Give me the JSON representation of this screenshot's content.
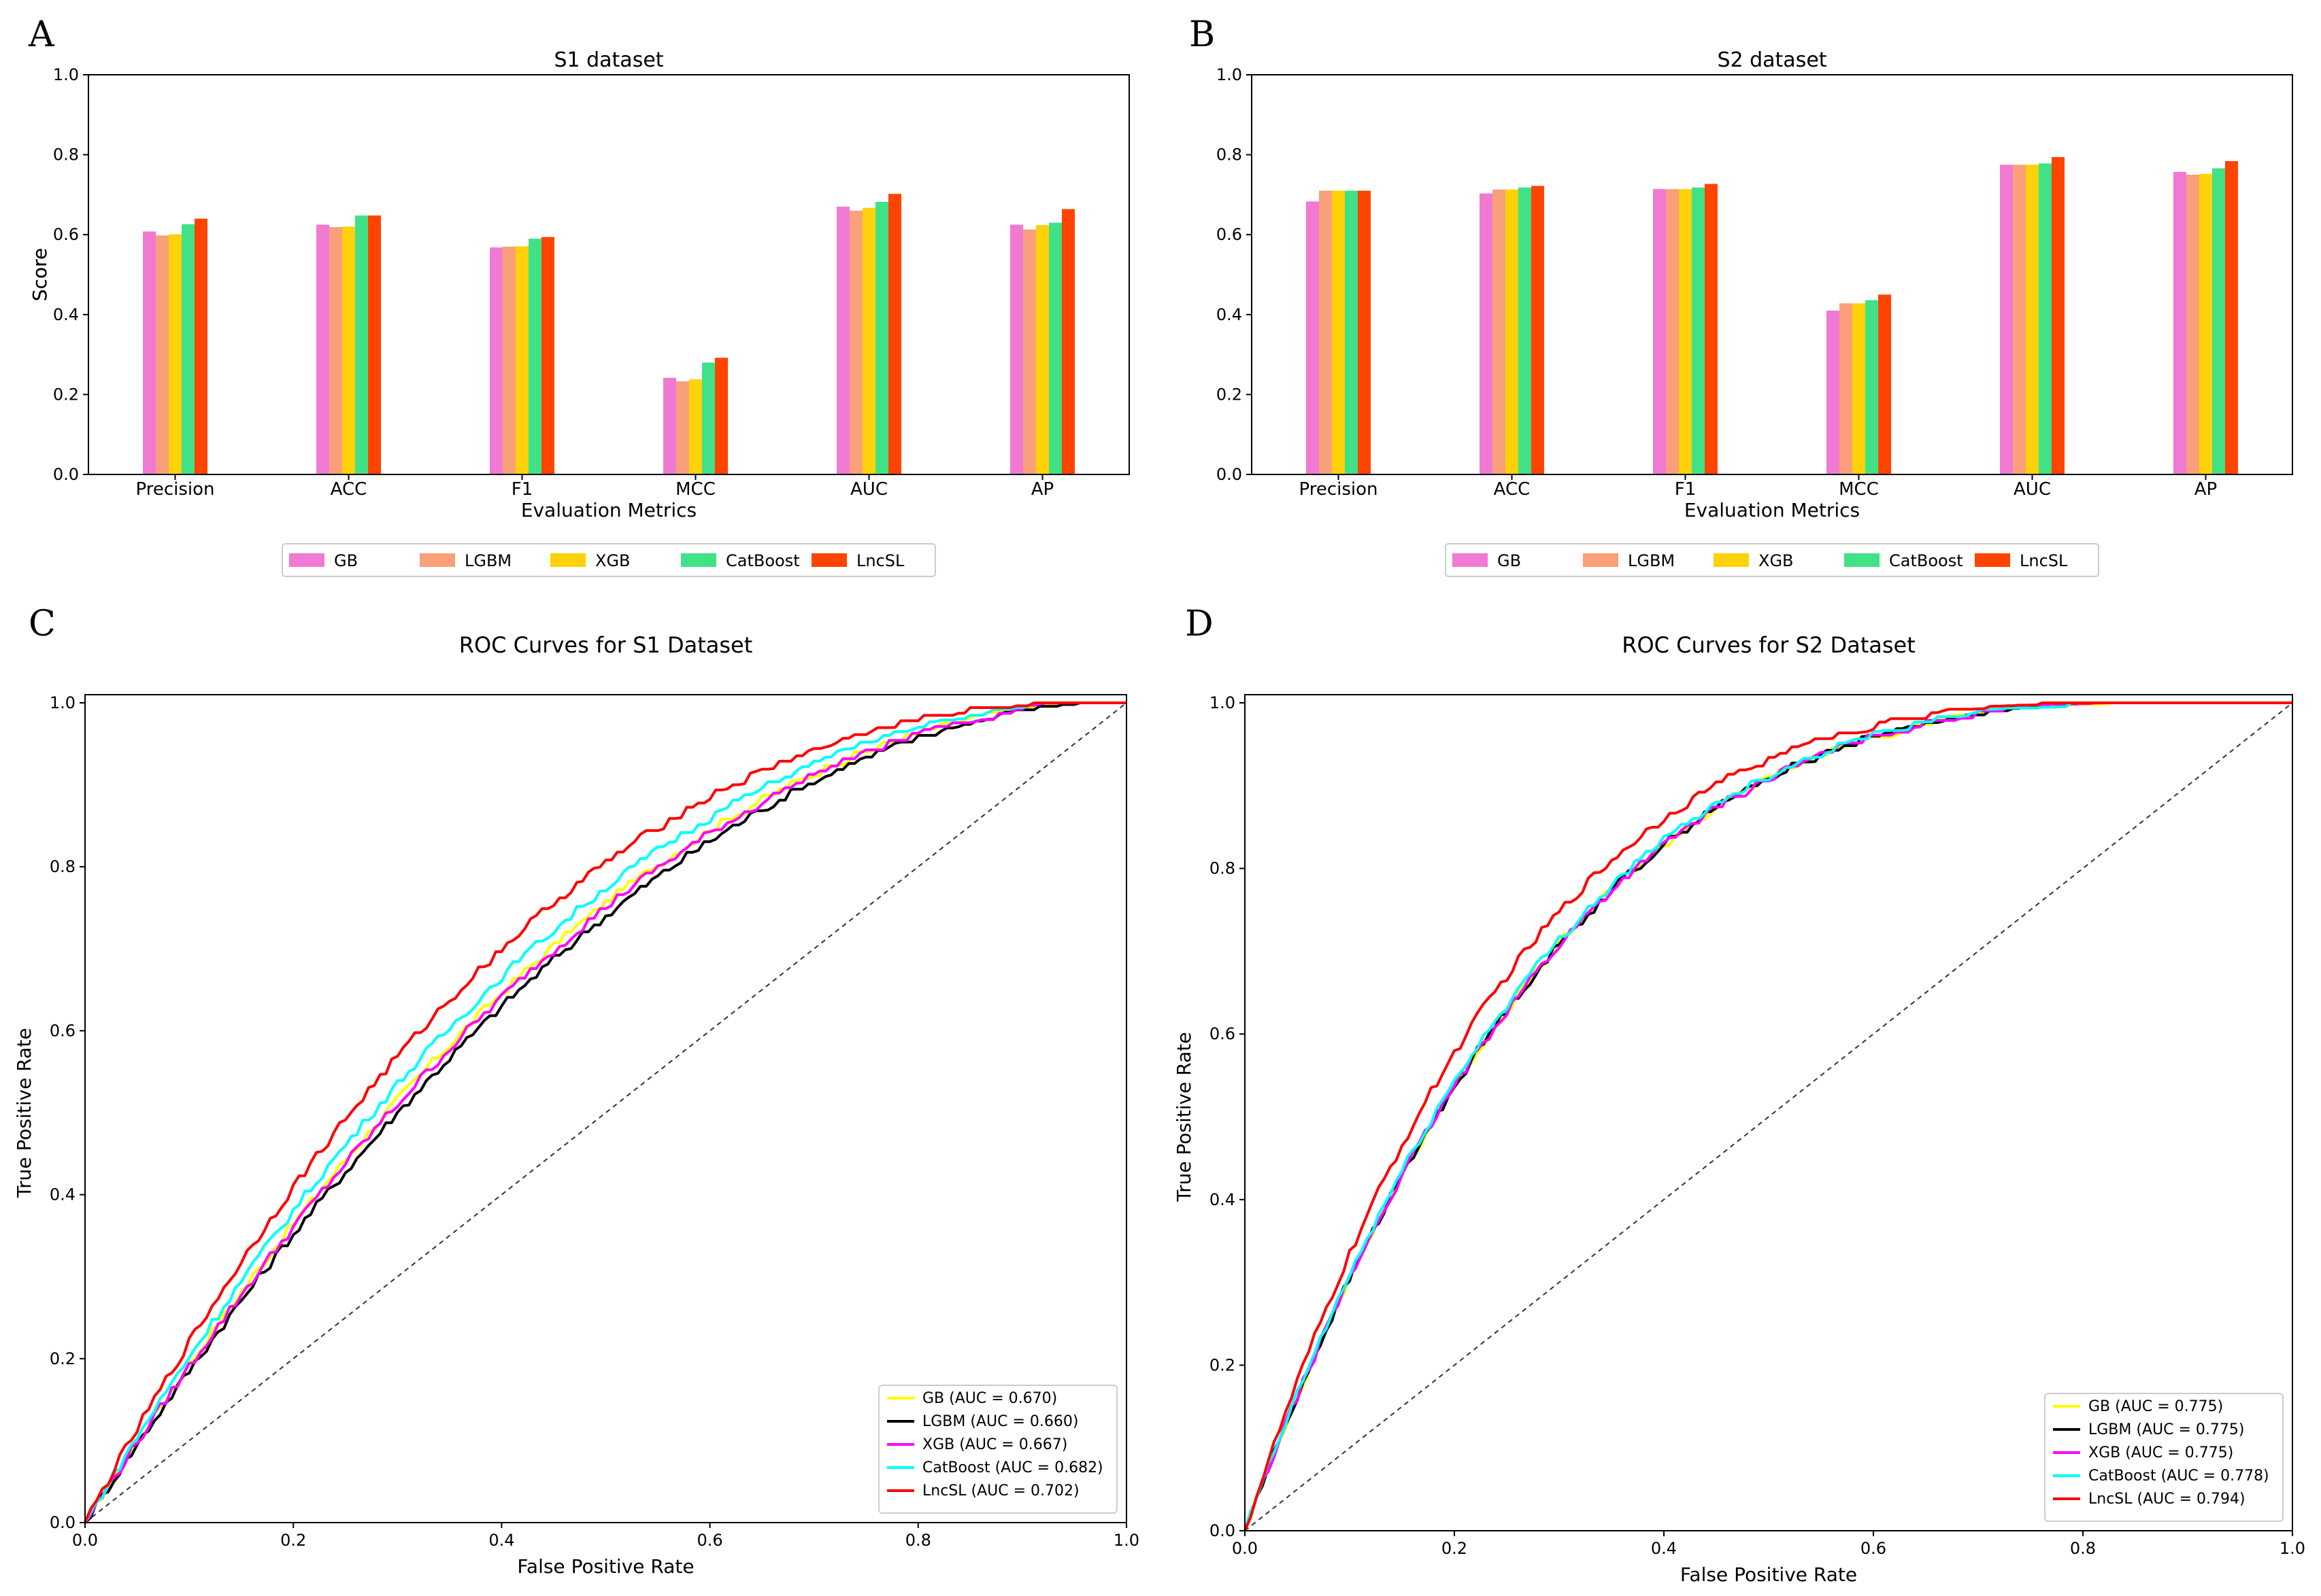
{
  "chart_data": [
    {
      "panel": "A",
      "type": "bar",
      "title": "S1 dataset",
      "xlabel": "Evaluation Metrics",
      "ylabel": "Score",
      "ylim": [
        0,
        1.0
      ],
      "yticks": [
        "0.0",
        "0.2",
        "0.4",
        "0.6",
        "0.8",
        "1.0"
      ],
      "categories": [
        "Precision",
        "ACC",
        "F1",
        "MCC",
        "AUC",
        "AP"
      ],
      "series": [
        {
          "name": "GB",
          "color": "#f07ad2",
          "values": [
            0.608,
            0.625,
            0.568,
            0.242,
            0.67,
            0.625
          ]
        },
        {
          "name": "LGBM",
          "color": "#f9a07a",
          "values": [
            0.598,
            0.619,
            0.57,
            0.233,
            0.66,
            0.613
          ]
        },
        {
          "name": "XGB",
          "color": "#fdd20a",
          "values": [
            0.601,
            0.62,
            0.571,
            0.238,
            0.667,
            0.624
          ]
        },
        {
          "name": "CatBoost",
          "color": "#41e187",
          "values": [
            0.626,
            0.648,
            0.59,
            0.28,
            0.682,
            0.63
          ]
        },
        {
          "name": "LncSL",
          "color": "#ff4400",
          "values": [
            0.64,
            0.648,
            0.594,
            0.292,
            0.702,
            0.664
          ]
        }
      ],
      "legend": "bottom"
    },
    {
      "panel": "B",
      "type": "bar",
      "title": "S2 dataset",
      "xlabel": "Evaluation Metrics",
      "ylabel": "Score",
      "ylim": [
        0,
        1.0
      ],
      "yticks": [
        "0.0",
        "0.2",
        "0.4",
        "0.6",
        "0.8",
        "1.0"
      ],
      "categories": [
        "Precision",
        "ACC",
        "F1",
        "MCC",
        "AUC",
        "AP"
      ],
      "series": [
        {
          "name": "GB",
          "color": "#f07ad2",
          "values": [
            0.683,
            0.703,
            0.714,
            0.41,
            0.775,
            0.757
          ]
        },
        {
          "name": "LGBM",
          "color": "#f9a07a",
          "values": [
            0.71,
            0.713,
            0.714,
            0.428,
            0.775,
            0.75
          ]
        },
        {
          "name": "XGB",
          "color": "#fdd20a",
          "values": [
            0.71,
            0.713,
            0.714,
            0.428,
            0.775,
            0.752
          ]
        },
        {
          "name": "CatBoost",
          "color": "#41e187",
          "values": [
            0.71,
            0.718,
            0.718,
            0.436,
            0.778,
            0.766
          ]
        },
        {
          "name": "LncSL",
          "color": "#ff4400",
          "values": [
            0.71,
            0.722,
            0.727,
            0.45,
            0.794,
            0.784
          ]
        }
      ],
      "legend": "bottom"
    },
    {
      "panel": "C",
      "type": "line",
      "title": "ROC Curves for S1 Dataset",
      "xlabel": "False Positive Rate",
      "ylabel": "True Positive Rate",
      "xlim": [
        0,
        1.0
      ],
      "ylim": [
        0,
        1.0
      ],
      "ticks": [
        "0.0",
        "0.2",
        "0.4",
        "0.6",
        "0.8",
        "1.0"
      ],
      "legend": "bottom-right",
      "diagonal": true,
      "series": [
        {
          "name": "GB",
          "label": "GB (AUC = 0.670)",
          "color": "#ffff00",
          "auc": 0.67
        },
        {
          "name": "LGBM",
          "label": "LGBM (AUC = 0.660)",
          "color": "#000000",
          "auc": 0.66
        },
        {
          "name": "XGB",
          "label": "XGB (AUC = 0.667)",
          "color": "#ff00ff",
          "auc": 0.667
        },
        {
          "name": "CatBoost",
          "label": "CatBoost (AUC = 0.682)",
          "color": "#00ffff",
          "auc": 0.682
        },
        {
          "name": "LncSL",
          "label": "LncSL (AUC = 0.702)",
          "color": "#ff0000",
          "auc": 0.702
        }
      ]
    },
    {
      "panel": "D",
      "type": "line",
      "title": "ROC Curves for S2 Dataset",
      "xlabel": "False Positive Rate",
      "ylabel": "True Positive Rate",
      "xlim": [
        0,
        1.0
      ],
      "ylim": [
        0,
        1.0
      ],
      "ticks": [
        "0.0",
        "0.2",
        "0.4",
        "0.6",
        "0.8",
        "1.0"
      ],
      "legend": "bottom-right",
      "diagonal": true,
      "series": [
        {
          "name": "GB",
          "label": "GB (AUC = 0.775)",
          "color": "#ffff00",
          "auc": 0.775
        },
        {
          "name": "LGBM",
          "label": "LGBM (AUC = 0.775)",
          "color": "#000000",
          "auc": 0.775
        },
        {
          "name": "XGB",
          "label": "XGB (AUC = 0.775)",
          "color": "#ff00ff",
          "auc": 0.775
        },
        {
          "name": "CatBoost",
          "label": "CatBoost (AUC = 0.778)",
          "color": "#00ffff",
          "auc": 0.778
        },
        {
          "name": "LncSL",
          "label": "LncSL (AUC = 0.794)",
          "color": "#ff0000",
          "auc": 0.794
        }
      ]
    }
  ]
}
